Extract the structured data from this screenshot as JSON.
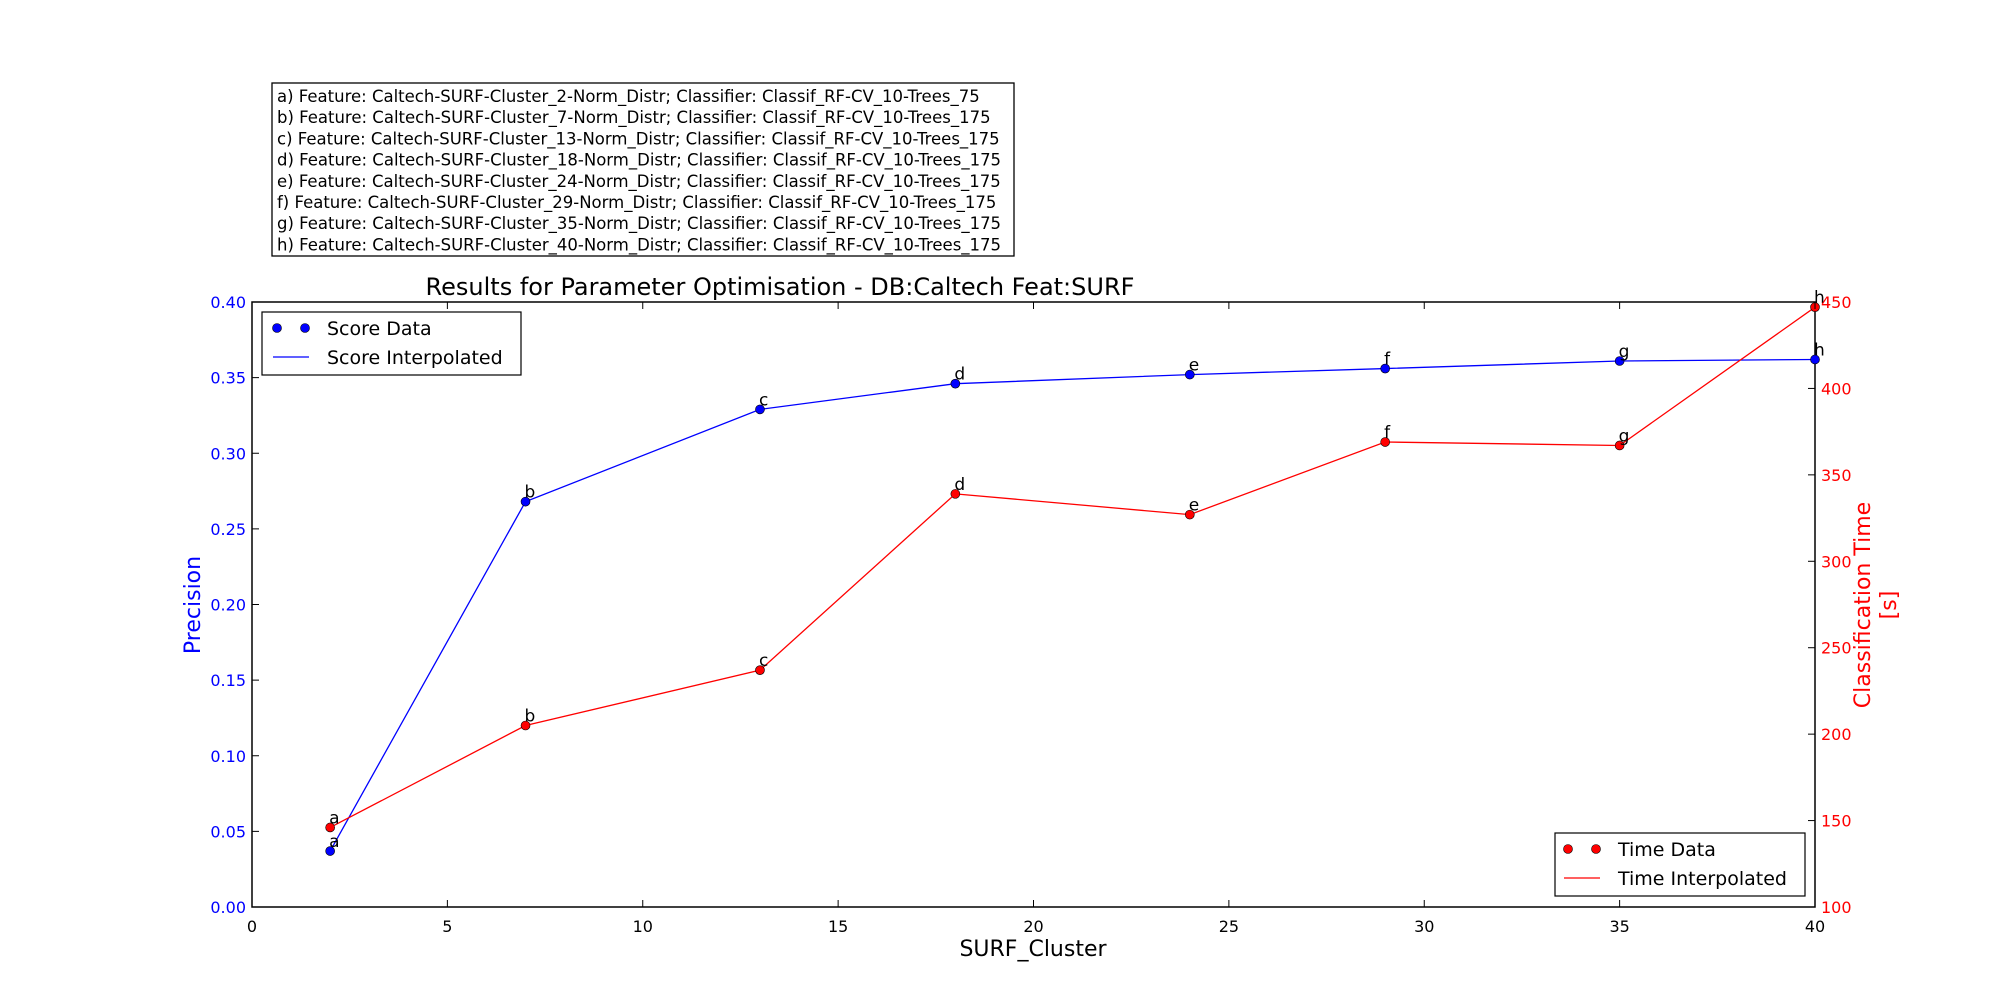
{
  "info_box": {
    "lines": [
      "a) Feature: Caltech-SURF-Cluster_2-Norm_Distr; Classifier: Classif_RF-CV_10-Trees_75",
      "b) Feature: Caltech-SURF-Cluster_7-Norm_Distr; Classifier: Classif_RF-CV_10-Trees_175",
      "c) Feature: Caltech-SURF-Cluster_13-Norm_Distr; Classifier: Classif_RF-CV_10-Trees_175",
      "d) Feature: Caltech-SURF-Cluster_18-Norm_Distr; Classifier: Classif_RF-CV_10-Trees_175",
      "e) Feature: Caltech-SURF-Cluster_24-Norm_Distr; Classifier: Classif_RF-CV_10-Trees_175",
      "f) Feature: Caltech-SURF-Cluster_29-Norm_Distr; Classifier: Classif_RF-CV_10-Trees_175",
      "g) Feature: Caltech-SURF-Cluster_35-Norm_Distr; Classifier: Classif_RF-CV_10-Trees_175",
      "h) Feature: Caltech-SURF-Cluster_40-Norm_Distr; Classifier: Classif_RF-CV_10-Trees_175"
    ]
  },
  "chart_data": {
    "type": "line",
    "title": "Results for Parameter Optimisation - DB:Caltech Feat:SURF",
    "xlabel": "SURF_Cluster",
    "ylabel": "Precision",
    "y2label": [
      "Classification Time",
      "[s]"
    ],
    "xlim": [
      0,
      40
    ],
    "ylim": [
      0.0,
      0.4
    ],
    "y2lim": [
      100,
      450
    ],
    "x_ticks": [
      "0",
      "5",
      "10",
      "15",
      "20",
      "25",
      "30",
      "35",
      "40"
    ],
    "y_ticks": [
      "0.00",
      "0.05",
      "0.10",
      "0.15",
      "0.20",
      "0.25",
      "0.30",
      "0.35",
      "0.40"
    ],
    "y2_ticks": [
      "100",
      "150",
      "200",
      "250",
      "300",
      "350",
      "400",
      "450"
    ],
    "x": [
      2,
      7,
      13,
      18,
      24,
      29,
      35,
      40
    ],
    "point_labels": [
      "a",
      "b",
      "c",
      "d",
      "e",
      "f",
      "g",
      "h"
    ],
    "series": [
      {
        "name": "Score",
        "axis": "left",
        "color": "#0000ff",
        "values": [
          0.037,
          0.268,
          0.329,
          0.346,
          0.352,
          0.356,
          0.361,
          0.362
        ]
      },
      {
        "name": "Time",
        "axis": "right",
        "color": "#ff0000",
        "values": [
          146,
          205,
          237,
          339,
          327,
          369,
          367,
          447
        ]
      }
    ],
    "legends": [
      {
        "placement": "top-left",
        "entries": [
          "Score Data",
          "Score Interpolated"
        ]
      },
      {
        "placement": "bottom-right",
        "entries": [
          "Time Data",
          "Time Interpolated"
        ]
      }
    ],
    "grid": false
  }
}
